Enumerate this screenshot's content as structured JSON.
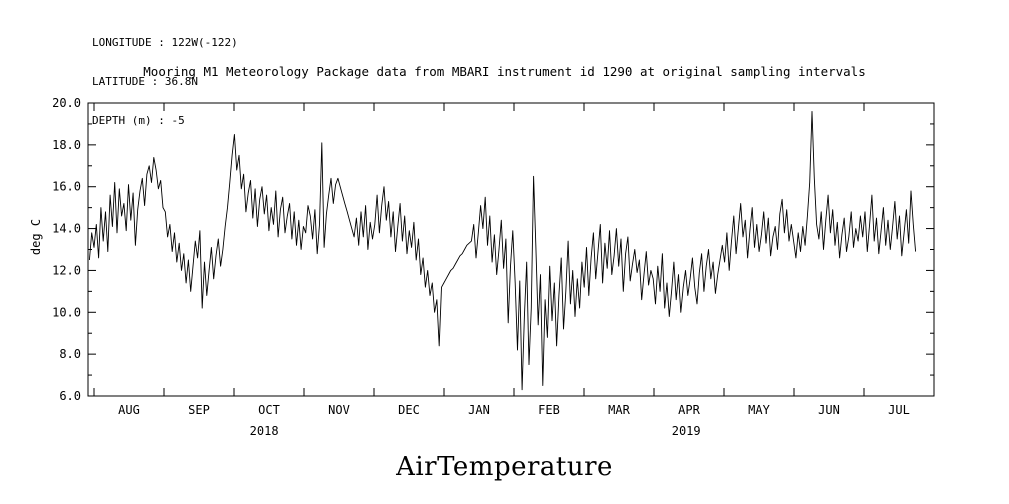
{
  "header": {
    "lines": [
      "LONGITUDE : 122W(-122)",
      "LATITUDE : 36.8N",
      "DEPTH (m) : -5"
    ]
  },
  "title": "Mooring M1 Meteorology Package data from MBARI instrument id 1290 at original sampling intervals",
  "footer": {
    "label": "AirTemperature"
  },
  "chart_data": {
    "type": "line",
    "title": "Mooring M1 Meteorology Package data from MBARI instrument id 1290 at original sampling intervals",
    "ylabel": "deg C",
    "ylim": [
      6.0,
      20.0
    ],
    "ytick_step": 2.0,
    "ytick_labels": [
      "6.0",
      "8.0",
      "10.0",
      "12.0",
      "14.0",
      "16.0",
      "18.0",
      "20.0"
    ],
    "x_months": [
      "AUG",
      "SEP",
      "OCT",
      "NOV",
      "DEC",
      "JAN",
      "FEB",
      "MAR",
      "APR",
      "MAY",
      "JUN",
      "JUL"
    ],
    "year_labels": [
      {
        "text": "2018",
        "month_offset": 2.43
      },
      {
        "text": "2019",
        "month_offset": 8.46
      }
    ],
    "x_start_date": "2018-07-30",
    "x_interval_days": 1,
    "line_color": "#000000",
    "grid": false,
    "legend": "none",
    "values": [
      12.5,
      13.8,
      13.1,
      14.2,
      12.6,
      15.0,
      13.4,
      14.8,
      12.9,
      15.6,
      14.1,
      16.2,
      13.8,
      15.9,
      14.6,
      15.2,
      13.9,
      16.1,
      14.4,
      15.7,
      13.2,
      14.9,
      15.8,
      16.4,
      15.1,
      16.6,
      17.0,
      16.2,
      17.4,
      16.8,
      15.9,
      16.3,
      15.0,
      14.8,
      13.6,
      14.2,
      12.9,
      13.8,
      12.4,
      13.3,
      12.0,
      12.8,
      11.4,
      12.5,
      11.0,
      12.2,
      13.4,
      12.6,
      13.9,
      10.2,
      12.4,
      10.8,
      12.0,
      13.1,
      11.6,
      12.7,
      13.5,
      12.2,
      13.0,
      14.1,
      15.0,
      16.2,
      17.5,
      18.5,
      16.8,
      17.5,
      15.9,
      16.6,
      14.8,
      15.7,
      16.3,
      14.5,
      15.9,
      14.1,
      15.4,
      16.0,
      14.7,
      15.6,
      13.9,
      15.0,
      14.2,
      15.8,
      13.6,
      14.9,
      15.5,
      13.8,
      14.6,
      15.2,
      13.5,
      14.8,
      13.2,
      14.4,
      13.0,
      14.1,
      13.8,
      15.1,
      14.6,
      13.5,
      14.9,
      12.8,
      14.2,
      18.1,
      13.1,
      14.7,
      15.6,
      16.4,
      15.2,
      16.1,
      16.4,
      16.0,
      15.6,
      15.2,
      14.8,
      14.4,
      14.0,
      13.6,
      14.5,
      13.2,
      14.8,
      13.6,
      15.1,
      13.0,
      14.3,
      13.5,
      14.2,
      15.6,
      13.8,
      15.1,
      16.0,
      14.4,
      15.3,
      13.6,
      14.8,
      12.9,
      14.1,
      15.2,
      13.4,
      14.6,
      12.8,
      13.9,
      13.1,
      14.3,
      12.5,
      13.5,
      11.8,
      12.6,
      11.2,
      12.0,
      10.8,
      11.4,
      10.0,
      10.6,
      8.4,
      11.2,
      11.4,
      11.6,
      11.8,
      12.0,
      12.1,
      12.3,
      12.5,
      12.7,
      12.8,
      13.0,
      13.2,
      13.3,
      13.4,
      14.2,
      12.6,
      13.8,
      15.1,
      14.0,
      15.5,
      13.2,
      14.6,
      12.4,
      13.7,
      11.8,
      13.0,
      14.4,
      12.1,
      13.5,
      9.5,
      12.2,
      13.9,
      11.4,
      8.2,
      11.5,
      6.3,
      9.8,
      12.4,
      7.5,
      10.2,
      16.5,
      13.1,
      9.4,
      11.8,
      6.5,
      10.6,
      8.8,
      12.2,
      9.6,
      11.4,
      8.4,
      10.8,
      12.6,
      9.2,
      11.0,
      13.4,
      10.4,
      12.0,
      9.8,
      11.6,
      10.2,
      12.4,
      11.2,
      13.1,
      10.8,
      12.6,
      13.8,
      11.6,
      12.9,
      14.2,
      11.4,
      13.3,
      12.1,
      13.9,
      11.8,
      12.7,
      14.0,
      12.2,
      13.5,
      11.0,
      12.8,
      13.6,
      11.5,
      12.3,
      13.0,
      11.9,
      12.5,
      10.6,
      11.8,
      12.9,
      11.3,
      12.0,
      11.6,
      10.4,
      12.2,
      11.0,
      12.8,
      10.2,
      11.4,
      9.8,
      11.0,
      12.4,
      10.6,
      11.8,
      10.0,
      11.2,
      12.0,
      10.8,
      11.6,
      12.6,
      11.2,
      10.4,
      11.9,
      12.8,
      11.0,
      12.2,
      13.0,
      11.6,
      12.4,
      10.9,
      11.8,
      12.5,
      13.2,
      12.4,
      13.8,
      12.0,
      13.4,
      14.6,
      12.8,
      14.0,
      15.2,
      13.6,
      14.4,
      12.6,
      13.9,
      15.0,
      13.1,
      14.2,
      12.9,
      13.7,
      14.8,
      13.3,
      14.5,
      12.7,
      13.6,
      14.1,
      13.0,
      14.7,
      15.4,
      13.8,
      14.9,
      13.4,
      14.2,
      13.4,
      12.6,
      13.8,
      12.9,
      14.1,
      13.2,
      14.6,
      16.2,
      19.6,
      16.4,
      14.2,
      13.5,
      14.8,
      13.0,
      14.4,
      15.6,
      13.8,
      14.9,
      13.2,
      14.3,
      12.6,
      13.7,
      14.5,
      12.9,
      13.6,
      14.8,
      13.1,
      14.0,
      13.4,
      14.6,
      13.6,
      14.8,
      12.9,
      14.2,
      15.6,
      13.4,
      14.5,
      12.8,
      13.9,
      15.0,
      13.2,
      14.4,
      13.0,
      14.1,
      15.3,
      13.5,
      14.6,
      12.7,
      13.8,
      14.9,
      13.3,
      15.8,
      14.2,
      12.9
    ]
  }
}
